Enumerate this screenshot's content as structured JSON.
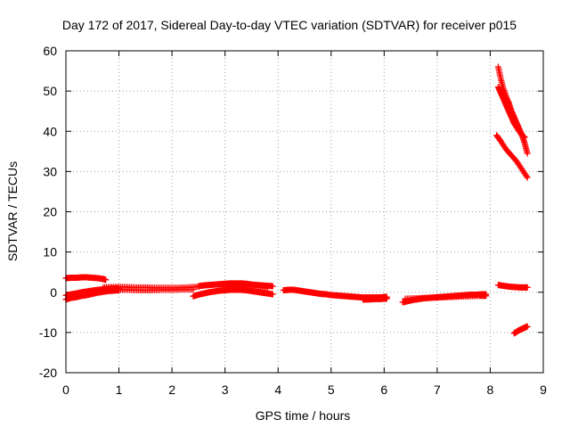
{
  "chart_data": {
    "type": "scatter",
    "title": "Day 172 of 2017, Sidereal Day-to-day VTEC variation (SDTVAR) for receiver p015",
    "xlabel": "GPS time / hours",
    "ylabel": "SDTVAR / TECUs",
    "xlim": [
      0,
      9
    ],
    "ylim": [
      -20,
      60
    ],
    "xticks": [
      "0",
      "1",
      "2",
      "3",
      "4",
      "5",
      "6",
      "7",
      "8",
      "9"
    ],
    "yticks": [
      "-20",
      "-10",
      "0",
      "10",
      "20",
      "30",
      "40",
      "50",
      "60"
    ],
    "grid": true,
    "marker": "plus",
    "marker_color": "#ff0000",
    "series": [
      {
        "x": [
          0.0,
          0.1,
          0.2,
          0.3,
          0.4,
          0.5,
          0.6,
          0.7,
          0.75
        ],
        "y": [
          3.5,
          3.6,
          3.6,
          3.7,
          3.7,
          3.6,
          3.5,
          3.3,
          3.1
        ]
      },
      {
        "x": [
          0.0,
          0.1,
          0.2,
          0.3,
          0.4,
          0.5,
          0.6,
          0.7,
          0.8,
          0.9,
          1.0
        ],
        "y": [
          -1.8,
          -1.4,
          -1.2,
          -0.9,
          -0.7,
          -0.4,
          -0.1,
          0.1,
          0.3,
          0.4,
          0.5
        ]
      },
      {
        "x": [
          0.0,
          0.1,
          0.2,
          0.3,
          0.4,
          0.5,
          0.6,
          0.7,
          0.8,
          0.9,
          1.0
        ],
        "y": [
          -0.8,
          -0.5,
          -0.3,
          0.0,
          0.2,
          0.4,
          0.6,
          0.7,
          0.8,
          0.9,
          1.0
        ]
      },
      {
        "x": [
          0.7,
          0.9,
          1.1,
          1.3,
          1.5,
          1.7,
          1.9,
          2.1,
          2.3,
          2.5
        ],
        "y": [
          1.2,
          1.3,
          1.3,
          1.2,
          1.2,
          1.1,
          1.1,
          1.1,
          1.2,
          1.4
        ]
      },
      {
        "x": [
          1.0,
          1.2,
          1.4,
          1.6,
          1.8,
          2.0,
          2.2,
          2.4
        ],
        "y": [
          0.6,
          0.6,
          0.5,
          0.5,
          0.6,
          0.6,
          0.7,
          0.7
        ]
      },
      {
        "x": [
          2.5,
          2.6,
          2.7,
          2.8,
          2.9,
          3.0,
          3.1,
          3.2,
          3.3,
          3.4,
          3.5,
          3.6,
          3.7,
          3.8,
          3.9
        ],
        "y": [
          1.5,
          1.7,
          1.8,
          1.9,
          2.0,
          2.1,
          2.2,
          2.2,
          2.2,
          2.1,
          1.9,
          1.8,
          1.7,
          1.6,
          1.5
        ]
      },
      {
        "x": [
          2.4,
          2.5,
          2.6,
          2.7,
          2.8,
          2.9,
          3.0,
          3.1,
          3.2,
          3.3,
          3.4,
          3.5,
          3.6,
          3.7,
          3.8,
          3.9
        ],
        "y": [
          -1.0,
          -0.6,
          -0.3,
          0.0,
          0.2,
          0.4,
          0.5,
          0.6,
          0.6,
          0.6,
          0.5,
          0.3,
          0.1,
          -0.1,
          -0.3,
          -0.5
        ]
      },
      {
        "x": [
          3.0,
          3.2,
          3.4,
          3.6,
          3.8
        ],
        "y": [
          1.2,
          1.4,
          1.5,
          1.3,
          1.0
        ]
      },
      {
        "x": [
          4.1,
          4.2,
          4.3,
          4.4,
          4.5,
          4.6,
          4.7,
          4.8,
          4.9,
          5.0,
          5.1,
          5.2,
          5.3,
          5.4,
          5.5,
          5.6,
          5.7,
          5.8,
          5.9,
          6.0,
          6.05
        ],
        "y": [
          0.5,
          0.6,
          0.6,
          0.4,
          0.2,
          0.0,
          -0.2,
          -0.4,
          -0.5,
          -0.7,
          -0.8,
          -0.9,
          -1.0,
          -1.1,
          -1.2,
          -1.3,
          -1.3,
          -1.3,
          -1.3,
          -1.2,
          -1.2
        ]
      },
      {
        "x": [
          5.6,
          5.7,
          5.8,
          5.9,
          6.0,
          6.05
        ],
        "y": [
          -1.8,
          -1.8,
          -1.7,
          -1.7,
          -1.6,
          -1.6
        ]
      },
      {
        "x": [
          6.35,
          6.45,
          6.55,
          6.65,
          6.75,
          6.85,
          6.95,
          7.05,
          7.15,
          7.25,
          7.35,
          7.45,
          7.55,
          7.65,
          7.75,
          7.85,
          7.92
        ],
        "y": [
          -2.5,
          -2.2,
          -1.9,
          -1.7,
          -1.5,
          -1.4,
          -1.3,
          -1.2,
          -1.1,
          -1.0,
          -0.9,
          -0.8,
          -0.7,
          -0.6,
          -0.6,
          -0.5,
          -0.5
        ]
      },
      {
        "x": [
          6.4,
          6.6,
          6.8,
          7.0,
          7.2,
          7.4,
          7.6,
          7.8,
          7.92
        ],
        "y": [
          -1.6,
          -1.5,
          -1.4,
          -1.3,
          -1.2,
          -1.1,
          -1.0,
          -0.9,
          -0.9
        ]
      },
      {
        "x": [
          8.15,
          8.2,
          8.25,
          8.3,
          8.35,
          8.4,
          8.45,
          8.5,
          8.55,
          8.6,
          8.65,
          8.7
        ],
        "y": [
          56.0,
          53.0,
          50.5,
          48.5,
          47.0,
          45.0,
          43.5,
          42.0,
          40.5,
          39.0,
          37.0,
          34.5
        ]
      },
      {
        "x": [
          8.15,
          8.2,
          8.25,
          8.3,
          8.35,
          8.4,
          8.45,
          8.5,
          8.55,
          8.6,
          8.65
        ],
        "y": [
          51.0,
          49.5,
          48.0,
          46.5,
          45.0,
          43.5,
          42.0,
          41.0,
          40.0,
          39.0,
          38.5
        ]
      },
      {
        "x": [
          8.12,
          8.2,
          8.3,
          8.4,
          8.5,
          8.6,
          8.7
        ],
        "y": [
          39.0,
          37.5,
          35.5,
          34.0,
          32.5,
          30.5,
          28.5
        ]
      },
      {
        "x": [
          8.15,
          8.25,
          8.35,
          8.45,
          8.55,
          8.65,
          8.7
        ],
        "y": [
          1.8,
          1.6,
          1.4,
          1.3,
          1.2,
          1.2,
          1.2
        ]
      },
      {
        "x": [
          8.45,
          8.5,
          8.55,
          8.6,
          8.65,
          8.7
        ],
        "y": [
          -10.2,
          -9.8,
          -9.4,
          -9.1,
          -8.8,
          -8.5
        ]
      }
    ]
  }
}
